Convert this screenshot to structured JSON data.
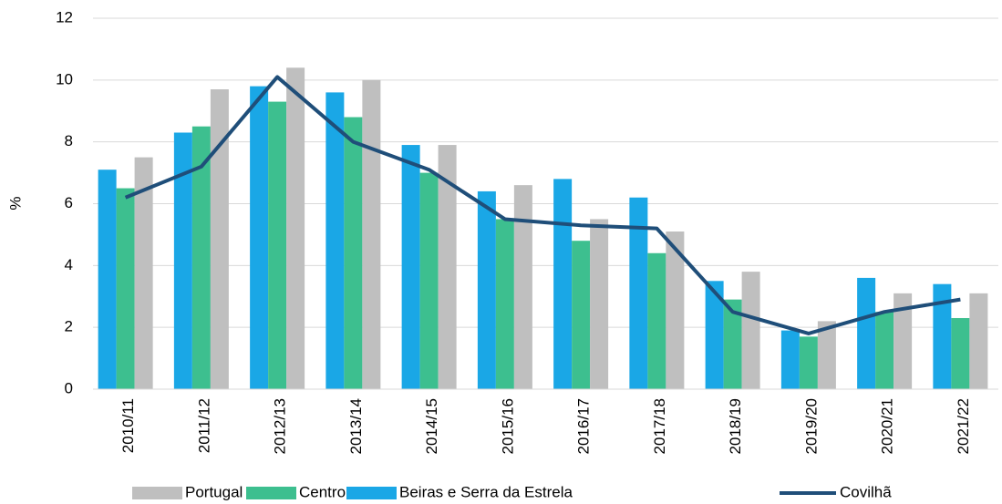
{
  "chart_data": {
    "type": "bar_line",
    "y_label": "%",
    "categories": [
      "2010/11",
      "2011/12",
      "2012/13",
      "2013/14",
      "2014/15",
      "2015/16",
      "2016/17",
      "2017/18",
      "2018/19",
      "2019/20",
      "2020/21",
      "2021/22"
    ],
    "series": [
      {
        "name": "Portugal",
        "type": "bar",
        "color": "#bfbfbf",
        "values": [
          7.5,
          9.7,
          10.4,
          10.0,
          7.9,
          6.6,
          5.5,
          5.1,
          3.8,
          2.2,
          3.1,
          3.1
        ]
      },
      {
        "name": "Centro",
        "type": "bar",
        "color": "#3dbf8f",
        "values": [
          6.5,
          8.5,
          9.3,
          8.8,
          7.0,
          5.5,
          4.8,
          4.4,
          2.9,
          1.7,
          2.5,
          2.3
        ]
      },
      {
        "name": "Beiras e Serra da Estrela",
        "type": "bar",
        "color": "#1aa7e6",
        "values": [
          7.1,
          8.3,
          9.8,
          9.6,
          7.9,
          6.4,
          6.8,
          6.2,
          3.5,
          1.9,
          3.6,
          3.4
        ]
      },
      {
        "name": "Covilhã",
        "type": "line",
        "color": "#1f4e79",
        "values": [
          6.2,
          7.2,
          10.1,
          8.0,
          7.1,
          5.5,
          5.3,
          5.2,
          2.5,
          1.8,
          2.5,
          2.9
        ]
      }
    ],
    "ylim": [
      0,
      12
    ],
    "yticks": [
      0,
      2,
      4,
      6,
      8,
      10,
      12
    ],
    "grid": true,
    "legend": "bottom"
  }
}
